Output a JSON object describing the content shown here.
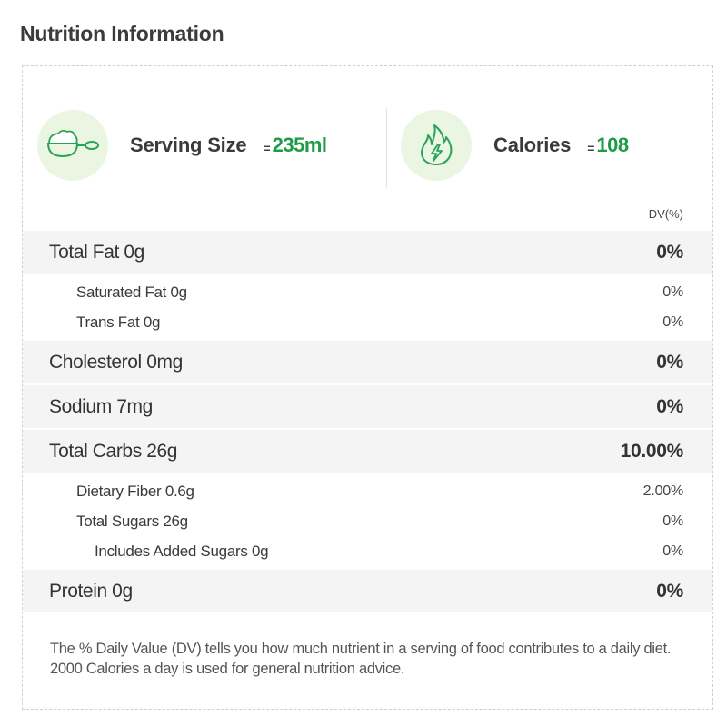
{
  "page": {
    "title": "Nutrition Information"
  },
  "summary": {
    "serving": {
      "label": "Serving Size",
      "eq": "=",
      "value": "235ml",
      "icon": "scoop-icon"
    },
    "calories": {
      "label": "Calories",
      "eq": "=",
      "value": "108",
      "icon": "flame-icon"
    }
  },
  "table": {
    "dv_header": "DV(%)",
    "rows": [
      {
        "level": "main",
        "label": "Total Fat 0g",
        "value": "0%"
      },
      {
        "level": "sub",
        "label": "Saturated Fat 0g",
        "value": "0%"
      },
      {
        "level": "sub",
        "label": "Trans Fat 0g",
        "value": "0%"
      },
      {
        "level": "main",
        "label": "Cholesterol 0mg",
        "value": "0%"
      },
      {
        "level": "main",
        "label": "Sodium 7mg",
        "value": "0%"
      },
      {
        "level": "main",
        "label": "Total Carbs 26g",
        "value": "10.00%"
      },
      {
        "level": "sub",
        "label": "Dietary Fiber 0.6g",
        "value": "2.00%"
      },
      {
        "level": "sub",
        "label": "Total Sugars 26g",
        "value": "0%"
      },
      {
        "level": "sub2",
        "label": "Includes Added Sugars 0g",
        "value": "0%"
      },
      {
        "level": "main",
        "label": "Protein 0g",
        "value": "0%"
      }
    ]
  },
  "footnote": "The % Daily Value (DV) tells you how much nutrient in a serving of food contributes to a daily diet. 2000 Calories a day is used for general nutrition advice.",
  "colors": {
    "accent_green": "#1e9b47",
    "icon_bg": "#eaf5e2",
    "row_bg": "#f4f4f4"
  }
}
